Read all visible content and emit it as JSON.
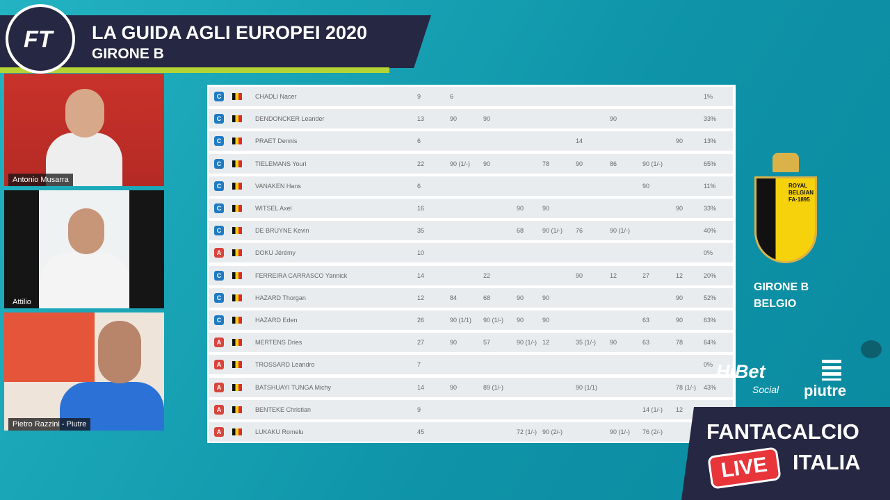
{
  "header": {
    "title": "LA GUIDA AGLI EUROPEI 2020",
    "subtitle": "GIRONE B"
  },
  "participants": [
    "Antonio Musarra",
    "Attilio",
    "Pietro Razzini - Piutre"
  ],
  "table": {
    "rows": [
      {
        "role": "C",
        "name": "CHADLI Nacer",
        "total": "9",
        "matches": [
          "6",
          null,
          null,
          null,
          null,
          null,
          null,
          null
        ],
        "pct": "1%"
      },
      {
        "role": "C",
        "name": "DENDONCKER Leander",
        "total": "13",
        "matches": [
          "90",
          "90",
          null,
          null,
          null,
          "90",
          null,
          null
        ],
        "pct": "33%"
      },
      {
        "role": "C",
        "name": "PRAET Dennis",
        "total": "6",
        "matches": [
          null,
          null,
          null,
          null,
          "14",
          null,
          null,
          "90"
        ],
        "pct": "13%"
      },
      {
        "role": "C",
        "name": "TIELEMANS Youri",
        "total": "22",
        "matches": [
          "90 (1/-)",
          "90",
          null,
          "78",
          "90",
          "86",
          "90 (1/-)",
          null
        ],
        "pct": "65%"
      },
      {
        "role": "C",
        "name": "VANAKEN Hans",
        "total": "6",
        "matches": [
          null,
          null,
          null,
          null,
          null,
          null,
          "90",
          null
        ],
        "pct": "11%"
      },
      {
        "role": "C",
        "name": "WITSEL Axel",
        "total": "16",
        "matches": [
          null,
          null,
          "90",
          "90",
          null,
          null,
          null,
          "90"
        ],
        "pct": "33%"
      },
      {
        "role": "C",
        "name": "DE BRUYNE Kevin",
        "total": "35",
        "matches": [
          null,
          null,
          "68",
          "90 (1/-)",
          "76",
          "90 (1/-)",
          null,
          null
        ],
        "pct": "40%"
      },
      {
        "role": "A",
        "name": "DOKU Jérémy",
        "total": "10",
        "matches": [
          null,
          null,
          null,
          null,
          null,
          null,
          null,
          null
        ],
        "pct": "0%"
      },
      {
        "role": "C",
        "name": "FERREIRA CARRASCO Yannick",
        "total": "14",
        "matches": [
          null,
          "22",
          null,
          null,
          "90",
          "12",
          "27",
          "12"
        ],
        "pct": "20%"
      },
      {
        "role": "C",
        "name": "HAZARD Thorgan",
        "total": "12",
        "matches": [
          "84",
          "68",
          "90",
          "90",
          null,
          null,
          null,
          "90"
        ],
        "pct": "52%"
      },
      {
        "role": "C",
        "name": "HAZARD Eden",
        "total": "26",
        "matches": [
          "90 (1/1)",
          "90 (1/-)",
          "90",
          "90",
          null,
          null,
          "63",
          "90"
        ],
        "pct": "63%"
      },
      {
        "role": "A",
        "name": "MERTENS Dries",
        "total": "27",
        "matches": [
          "90",
          "57",
          "90 (1/-)",
          "12",
          "35 (1/-)",
          "90",
          "63",
          "78"
        ],
        "pct": "64%"
      },
      {
        "role": "A",
        "name": "TROSSARD Leandro",
        "total": "7",
        "matches": [
          null,
          null,
          null,
          null,
          null,
          null,
          null,
          null
        ],
        "pct": "0%"
      },
      {
        "role": "A",
        "name": "BATSHUAYI TUNGA Michy",
        "total": "14",
        "matches": [
          "90",
          "89 (1/-)",
          null,
          null,
          "90 (1/1)",
          null,
          null,
          "78 (1/-)"
        ],
        "pct": "43%"
      },
      {
        "role": "A",
        "name": "BENTEKE Christian",
        "total": "9",
        "matches": [
          null,
          null,
          null,
          null,
          null,
          null,
          "14 (1/-)",
          "12"
        ],
        "pct": null
      },
      {
        "role": "A",
        "name": "LUKAKU Romelu",
        "total": "45",
        "matches": [
          null,
          null,
          "72 (1/-)",
          "90 (2/-)",
          null,
          "90 (1/-)",
          "76 (2/-)",
          null
        ],
        "pct": null
      }
    ]
  },
  "crest": {
    "text": [
      "ROYAL",
      "BELGIAN",
      "FA·1895"
    ],
    "group": "GIRONE B",
    "team": "BELGIO"
  },
  "sponsors": {
    "hibet": "HiBet",
    "hibet_sub": "Social",
    "piutre": "piutre"
  },
  "live_box": {
    "line1": "FANTACALCIO",
    "badge": "LIVE",
    "line2": "ITALIA"
  }
}
